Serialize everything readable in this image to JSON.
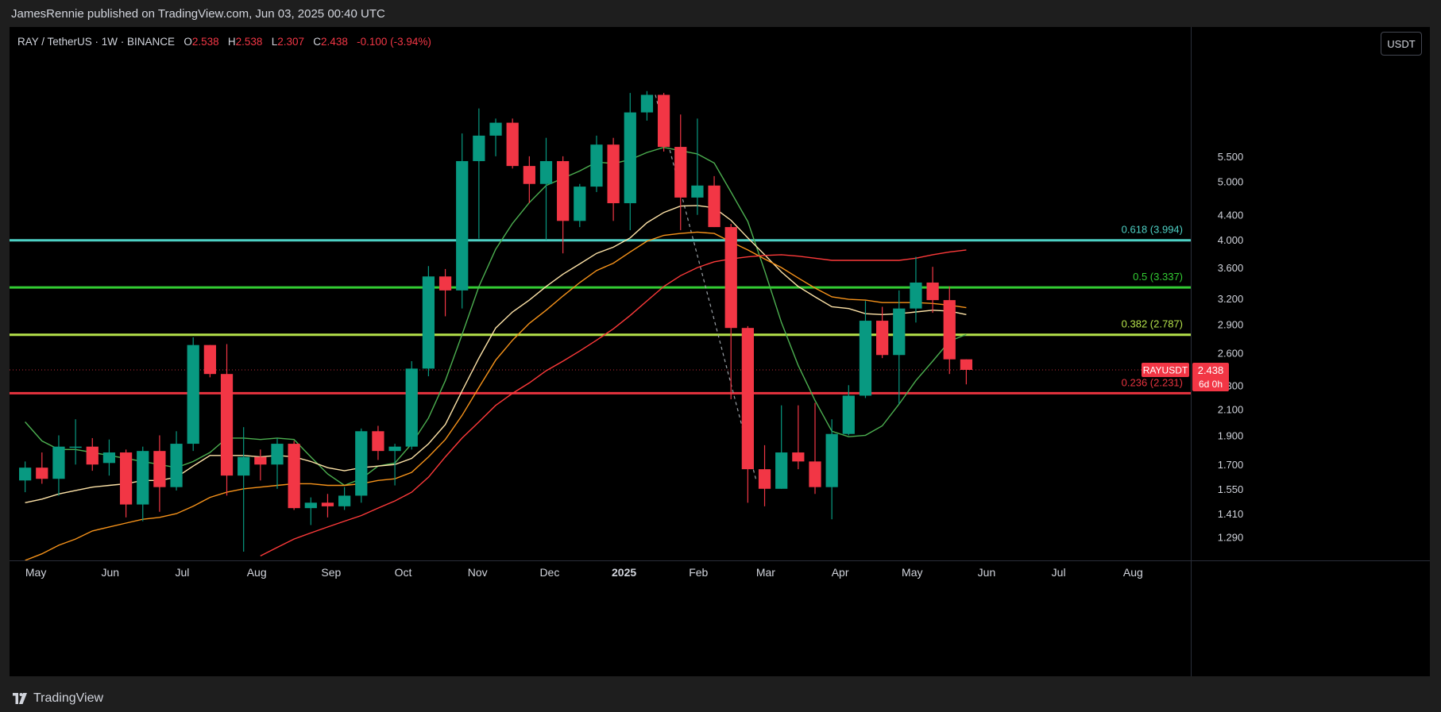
{
  "header": {
    "published_line": "JamesRennie published on TradingView.com, Jun 03, 2025 00:40 UTC"
  },
  "legend": {
    "symbol": "RAY / TetherUS · 1W · BINANCE",
    "o_label": "O",
    "o_value": "2.538",
    "h_label": "H",
    "h_value": "2.538",
    "l_label": "L",
    "l_value": "2.307",
    "c_label": "C",
    "c_value": "2.438",
    "change": "-0.100 (-3.94%)"
  },
  "currency_button": "USDT",
  "footer": {
    "brand": "TradingView"
  },
  "price_tag": {
    "symbol": "RAYUSDT",
    "price": "2.438",
    "countdown": "6d 0h"
  },
  "colors": {
    "up": "#089981",
    "down": "#f23645",
    "fib_618": "#4dd0c4",
    "fib_05": "#33cc33",
    "fib_0382": "#b4e04a",
    "fib_0236": "#e8333f",
    "ma_fast": "#4caf50",
    "ma_2": "#ffe4a8",
    "ma_3": "#f7931a",
    "ma_4": "#ff3a3a"
  },
  "chart_data": {
    "type": "candlestick",
    "symbol": "RAY / TetherUS",
    "interval": "1W",
    "exchange": "BINANCE",
    "scale": "log",
    "ylim": [
      1.18,
      9.0
    ],
    "y_ticks": [
      "1.290",
      "1.410",
      "1.550",
      "1.700",
      "1.900",
      "2.100",
      "2.300",
      "2.600",
      "2.900",
      "3.200",
      "3.600",
      "4.000",
      "4.400",
      "5.000",
      "5.500"
    ],
    "y_tick_values": [
      1.29,
      1.41,
      1.55,
      1.7,
      1.9,
      2.1,
      2.3,
      2.6,
      2.9,
      3.2,
      3.6,
      4.0,
      4.4,
      5.0,
      5.5
    ],
    "x_labels": [
      "May",
      "Jun",
      "Jul",
      "Aug",
      "Sep",
      "Oct",
      "Nov",
      "Dec",
      "2025",
      "Feb",
      "Mar",
      "Apr",
      "May",
      "Jun",
      "Jul",
      "Aug"
    ],
    "x_label_dates": [
      "2024-05-01",
      "2024-06-01",
      "2024-07-01",
      "2024-08-01",
      "2024-09-01",
      "2024-10-01",
      "2024-11-01",
      "2024-12-01",
      "2025-01-01",
      "2025-02-01",
      "2025-03-01",
      "2025-04-01",
      "2025-05-01",
      "2025-06-01",
      "2025-07-01",
      "2025-08-01"
    ],
    "x_range_dates": [
      "2024-04-26",
      "2025-08-31"
    ],
    "candles": [
      {
        "date": "2024-04-29",
        "o": 1.6,
        "h": 1.72,
        "l": 1.53,
        "c": 1.68
      },
      {
        "date": "2024-05-06",
        "o": 1.68,
        "h": 1.78,
        "l": 1.58,
        "c": 1.61
      },
      {
        "date": "2024-05-13",
        "o": 1.61,
        "h": 1.9,
        "l": 1.51,
        "c": 1.82
      },
      {
        "date": "2024-05-20",
        "o": 1.82,
        "h": 2.02,
        "l": 1.7,
        "c": 1.82
      },
      {
        "date": "2024-05-27",
        "o": 1.82,
        "h": 1.88,
        "l": 1.66,
        "c": 1.7
      },
      {
        "date": "2024-06-03",
        "o": 1.71,
        "h": 1.87,
        "l": 1.63,
        "c": 1.78
      },
      {
        "date": "2024-06-10",
        "o": 1.78,
        "h": 1.8,
        "l": 1.39,
        "c": 1.46
      },
      {
        "date": "2024-06-17",
        "o": 1.46,
        "h": 1.82,
        "l": 1.37,
        "c": 1.79
      },
      {
        "date": "2024-06-24",
        "o": 1.79,
        "h": 1.9,
        "l": 1.42,
        "c": 1.56
      },
      {
        "date": "2024-07-01",
        "o": 1.56,
        "h": 1.93,
        "l": 1.54,
        "c": 1.84
      },
      {
        "date": "2024-07-08",
        "o": 1.84,
        "h": 2.76,
        "l": 1.79,
        "c": 2.68
      },
      {
        "date": "2024-07-15",
        "o": 2.68,
        "h": 2.68,
        "l": 2.37,
        "c": 2.4
      },
      {
        "date": "2024-07-22",
        "o": 2.4,
        "h": 2.69,
        "l": 1.51,
        "c": 1.63
      },
      {
        "date": "2024-07-29",
        "o": 1.63,
        "h": 1.96,
        "l": 1.22,
        "c": 1.75
      },
      {
        "date": "2024-08-05",
        "o": 1.75,
        "h": 1.8,
        "l": 1.6,
        "c": 1.7
      },
      {
        "date": "2024-08-12",
        "o": 1.7,
        "h": 1.88,
        "l": 1.55,
        "c": 1.84
      },
      {
        "date": "2024-08-19",
        "o": 1.84,
        "h": 1.86,
        "l": 1.43,
        "c": 1.44
      },
      {
        "date": "2024-08-26",
        "o": 1.44,
        "h": 1.5,
        "l": 1.35,
        "c": 1.47
      },
      {
        "date": "2024-09-02",
        "o": 1.47,
        "h": 1.52,
        "l": 1.39,
        "c": 1.45
      },
      {
        "date": "2024-09-09",
        "o": 1.45,
        "h": 1.56,
        "l": 1.43,
        "c": 1.51
      },
      {
        "date": "2024-09-16",
        "o": 1.51,
        "h": 1.95,
        "l": 1.47,
        "c": 1.93
      },
      {
        "date": "2024-09-23",
        "o": 1.93,
        "h": 1.97,
        "l": 1.73,
        "c": 1.79
      },
      {
        "date": "2024-09-30",
        "o": 1.79,
        "h": 1.84,
        "l": 1.57,
        "c": 1.82
      },
      {
        "date": "2024-10-07",
        "o": 1.82,
        "h": 2.52,
        "l": 1.8,
        "c": 2.45
      },
      {
        "date": "2024-10-14",
        "o": 2.45,
        "h": 3.62,
        "l": 2.38,
        "c": 3.48
      },
      {
        "date": "2024-10-21",
        "o": 3.48,
        "h": 3.58,
        "l": 2.99,
        "c": 3.3
      },
      {
        "date": "2024-10-28",
        "o": 3.3,
        "h": 6.0,
        "l": 3.08,
        "c": 5.4
      },
      {
        "date": "2024-11-04",
        "o": 5.4,
        "h": 6.6,
        "l": 4.02,
        "c": 5.95
      },
      {
        "date": "2024-11-11",
        "o": 5.95,
        "h": 6.35,
        "l": 5.5,
        "c": 6.25
      },
      {
        "date": "2024-11-18",
        "o": 6.25,
        "h": 6.35,
        "l": 5.25,
        "c": 5.3
      },
      {
        "date": "2024-11-25",
        "o": 5.3,
        "h": 5.5,
        "l": 4.6,
        "c": 4.95
      },
      {
        "date": "2024-12-02",
        "o": 4.95,
        "h": 5.9,
        "l": 4.0,
        "c": 5.4
      },
      {
        "date": "2024-12-09",
        "o": 5.4,
        "h": 5.5,
        "l": 3.8,
        "c": 4.3
      },
      {
        "date": "2024-12-16",
        "o": 4.3,
        "h": 4.95,
        "l": 4.2,
        "c": 4.9
      },
      {
        "date": "2024-12-23",
        "o": 4.9,
        "h": 5.95,
        "l": 4.8,
        "c": 5.75
      },
      {
        "date": "2024-12-30",
        "o": 5.75,
        "h": 5.9,
        "l": 4.3,
        "c": 4.6
      },
      {
        "date": "2025-01-06",
        "o": 4.6,
        "h": 7.0,
        "l": 4.15,
        "c": 6.5
      },
      {
        "date": "2025-01-13",
        "o": 6.5,
        "h": 7.05,
        "l": 6.3,
        "c": 6.95
      },
      {
        "date": "2025-01-20",
        "o": 6.95,
        "h": 7.0,
        "l": 5.6,
        "c": 5.7
      },
      {
        "date": "2025-01-27",
        "o": 5.7,
        "h": 6.45,
        "l": 4.15,
        "c": 4.7
      },
      {
        "date": "2025-02-03",
        "o": 4.7,
        "h": 6.35,
        "l": 4.4,
        "c": 4.92
      },
      {
        "date": "2025-02-10",
        "o": 4.92,
        "h": 5.1,
        "l": 4.2,
        "c": 4.2
      },
      {
        "date": "2025-02-17",
        "o": 4.2,
        "h": 4.25,
        "l": 2.18,
        "c": 2.86
      },
      {
        "date": "2025-02-24",
        "o": 2.86,
        "h": 2.88,
        "l": 1.47,
        "c": 1.67
      },
      {
        "date": "2025-03-03",
        "o": 1.67,
        "h": 1.83,
        "l": 1.45,
        "c": 1.55
      },
      {
        "date": "2025-03-10",
        "o": 1.55,
        "h": 2.13,
        "l": 1.55,
        "c": 1.78
      },
      {
        "date": "2025-03-17",
        "o": 1.78,
        "h": 2.13,
        "l": 1.67,
        "c": 1.72
      },
      {
        "date": "2025-03-24",
        "o": 1.72,
        "h": 2.15,
        "l": 1.52,
        "c": 1.56
      },
      {
        "date": "2025-03-31",
        "o": 1.56,
        "h": 2.02,
        "l": 1.38,
        "c": 1.91
      },
      {
        "date": "2025-04-07",
        "o": 1.91,
        "h": 2.3,
        "l": 1.9,
        "c": 2.21
      },
      {
        "date": "2025-04-14",
        "o": 2.21,
        "h": 3.17,
        "l": 2.19,
        "c": 2.94
      },
      {
        "date": "2025-04-21",
        "o": 2.94,
        "h": 3.1,
        "l": 2.55,
        "c": 2.58
      },
      {
        "date": "2025-04-28",
        "o": 2.58,
        "h": 3.3,
        "l": 2.14,
        "c": 3.08
      },
      {
        "date": "2025-05-05",
        "o": 3.08,
        "h": 3.75,
        "l": 2.92,
        "c": 3.4
      },
      {
        "date": "2025-05-12",
        "o": 3.4,
        "h": 3.61,
        "l": 3.03,
        "c": 3.18
      },
      {
        "date": "2025-05-19",
        "o": 3.18,
        "h": 3.35,
        "l": 2.4,
        "c": 2.538
      },
      {
        "date": "2025-05-26",
        "o": 2.538,
        "h": 2.538,
        "l": 2.307,
        "c": 2.438
      }
    ],
    "fib_levels": [
      {
        "label": "0.618 (3.994)",
        "value": 3.994,
        "color": "#4dd0c4"
      },
      {
        "label": "0.5 (3.337)",
        "value": 3.337,
        "color": "#33cc33"
      },
      {
        "label": "0.382 (2.787)",
        "value": 2.787,
        "color": "#b4e04a"
      },
      {
        "label": "0.236 (2.231)",
        "value": 2.231,
        "color": "#e8333f"
      }
    ],
    "moving_averages": [
      {
        "color": "#4caf50",
        "values": [
          2.0,
          1.86,
          1.8,
          1.8,
          1.78,
          1.76,
          1.74,
          1.72,
          1.7,
          1.68,
          1.72,
          1.78,
          1.88,
          1.88,
          1.87,
          1.88,
          1.87,
          1.75,
          1.64,
          1.57,
          1.61,
          1.69,
          1.71,
          1.84,
          2.03,
          2.34,
          2.79,
          3.35,
          3.86,
          4.26,
          4.61,
          4.92,
          5.06,
          5.2,
          5.38,
          5.35,
          5.43,
          5.58,
          5.69,
          5.62,
          5.55,
          5.36,
          4.8,
          4.29,
          3.56,
          2.92,
          2.48,
          2.17,
          1.93,
          1.89,
          1.9,
          1.97,
          2.14,
          2.34,
          2.52,
          2.72,
          2.79
        ]
      },
      {
        "color": "#ffe4a8",
        "values": [
          1.47,
          1.49,
          1.52,
          1.54,
          1.56,
          1.57,
          1.58,
          1.6,
          1.6,
          1.62,
          1.69,
          1.76,
          1.76,
          1.76,
          1.75,
          1.76,
          1.75,
          1.72,
          1.68,
          1.66,
          1.68,
          1.69,
          1.7,
          1.74,
          1.84,
          1.98,
          2.25,
          2.55,
          2.86,
          3.04,
          3.18,
          3.35,
          3.51,
          3.65,
          3.8,
          3.89,
          4.03,
          4.27,
          4.44,
          4.55,
          4.56,
          4.52,
          4.31,
          4.03,
          3.78,
          3.54,
          3.35,
          3.22,
          3.1,
          3.08,
          3.02,
          3.01,
          3.02,
          3.04,
          3.06,
          3.05,
          3.01
        ]
      },
      {
        "color": "#f7931a",
        "values": [
          1.18,
          1.21,
          1.25,
          1.28,
          1.32,
          1.34,
          1.36,
          1.38,
          1.39,
          1.41,
          1.45,
          1.5,
          1.53,
          1.55,
          1.56,
          1.57,
          1.58,
          1.58,
          1.57,
          1.57,
          1.58,
          1.6,
          1.61,
          1.65,
          1.75,
          1.87,
          2.05,
          2.28,
          2.53,
          2.73,
          2.91,
          3.06,
          3.23,
          3.4,
          3.56,
          3.66,
          3.82,
          3.98,
          4.07,
          4.1,
          4.12,
          4.1,
          3.97,
          3.85,
          3.72,
          3.6,
          3.46,
          3.33,
          3.22,
          3.19,
          3.18,
          3.15,
          3.15,
          3.15,
          3.14,
          3.12,
          3.09
        ]
      },
      {
        "color": "#ff3a3a",
        "values": [
          null,
          null,
          null,
          null,
          null,
          null,
          null,
          null,
          null,
          null,
          null,
          null,
          null,
          null,
          1.2,
          1.24,
          1.28,
          1.31,
          1.34,
          1.37,
          1.4,
          1.44,
          1.48,
          1.53,
          1.62,
          1.75,
          1.88,
          2.0,
          2.13,
          2.23,
          2.32,
          2.43,
          2.52,
          2.62,
          2.73,
          2.85,
          3.0,
          3.17,
          3.35,
          3.49,
          3.6,
          3.68,
          3.72,
          3.75,
          3.77,
          3.78,
          3.76,
          3.73,
          3.7,
          3.7,
          3.7,
          3.7,
          3.7,
          3.73,
          3.78,
          3.82,
          3.85
        ]
      }
    ],
    "trendline_dashed": {
      "from": {
        "date": "2025-01-20",
        "price": 6.95
      },
      "to": {
        "date": "2025-03-03",
        "price": 1.6
      }
    }
  }
}
